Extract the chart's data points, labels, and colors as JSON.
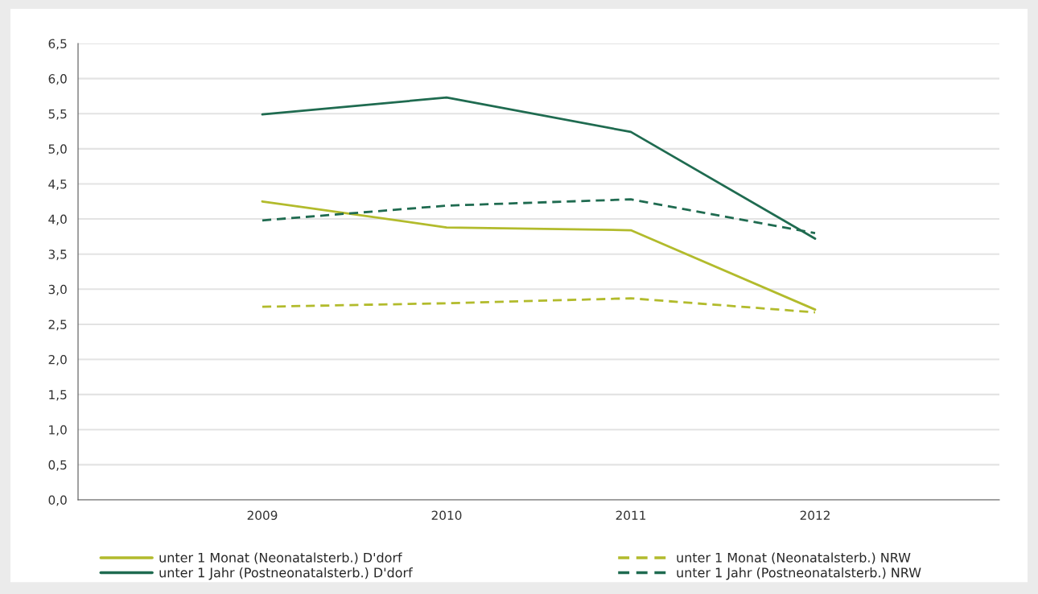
{
  "chart_data": {
    "type": "line",
    "categories": [
      "2009",
      "2010",
      "2011",
      "2012"
    ],
    "series": [
      {
        "name": "unter 1 Monat (Neonatalsterb.) D'dorf",
        "color": "#b2bb2c",
        "line_style": "solid",
        "values": [
          4.25,
          3.88,
          3.84,
          2.71
        ]
      },
      {
        "name": "unter 1 Jahr (Postneonatalsterb.) D'dorf",
        "color": "#1f6b50",
        "line_style": "solid",
        "values": [
          5.49,
          5.73,
          5.24,
          3.72
        ]
      },
      {
        "name": "unter 1 Monat (Neonatalsterb.) NRW",
        "color": "#b2bb2c",
        "line_style": "dashed",
        "values": [
          2.75,
          2.8,
          2.87,
          2.67
        ]
      },
      {
        "name": "unter 1 Jahr (Postneonatalsterb.) NRW",
        "color": "#1f6b50",
        "line_style": "dashed",
        "values": [
          3.98,
          4.19,
          4.28,
          3.8
        ]
      }
    ],
    "ylim": [
      0,
      6.5
    ],
    "yticks": [
      {
        "value": 0,
        "label": "0,0"
      },
      {
        "value": 0.5,
        "label": "0,5"
      },
      {
        "value": 1,
        "label": "1,0"
      },
      {
        "value": 1.5,
        "label": "1,5"
      },
      {
        "value": 2,
        "label": "2,0"
      },
      {
        "value": 2.5,
        "label": "2,5"
      },
      {
        "value": 3,
        "label": "3,0"
      },
      {
        "value": 3.5,
        "label": "3,5"
      },
      {
        "value": 4,
        "label": "4,0"
      },
      {
        "value": 4.5,
        "label": "4,5"
      },
      {
        "value": 5,
        "label": "5,0"
      },
      {
        "value": 5.5,
        "label": "5,5"
      },
      {
        "value": 6,
        "label": "6,0"
      },
      {
        "value": 6.5,
        "label": "6,5"
      }
    ],
    "grid": "y",
    "legend": "bottom",
    "marker": "none"
  }
}
